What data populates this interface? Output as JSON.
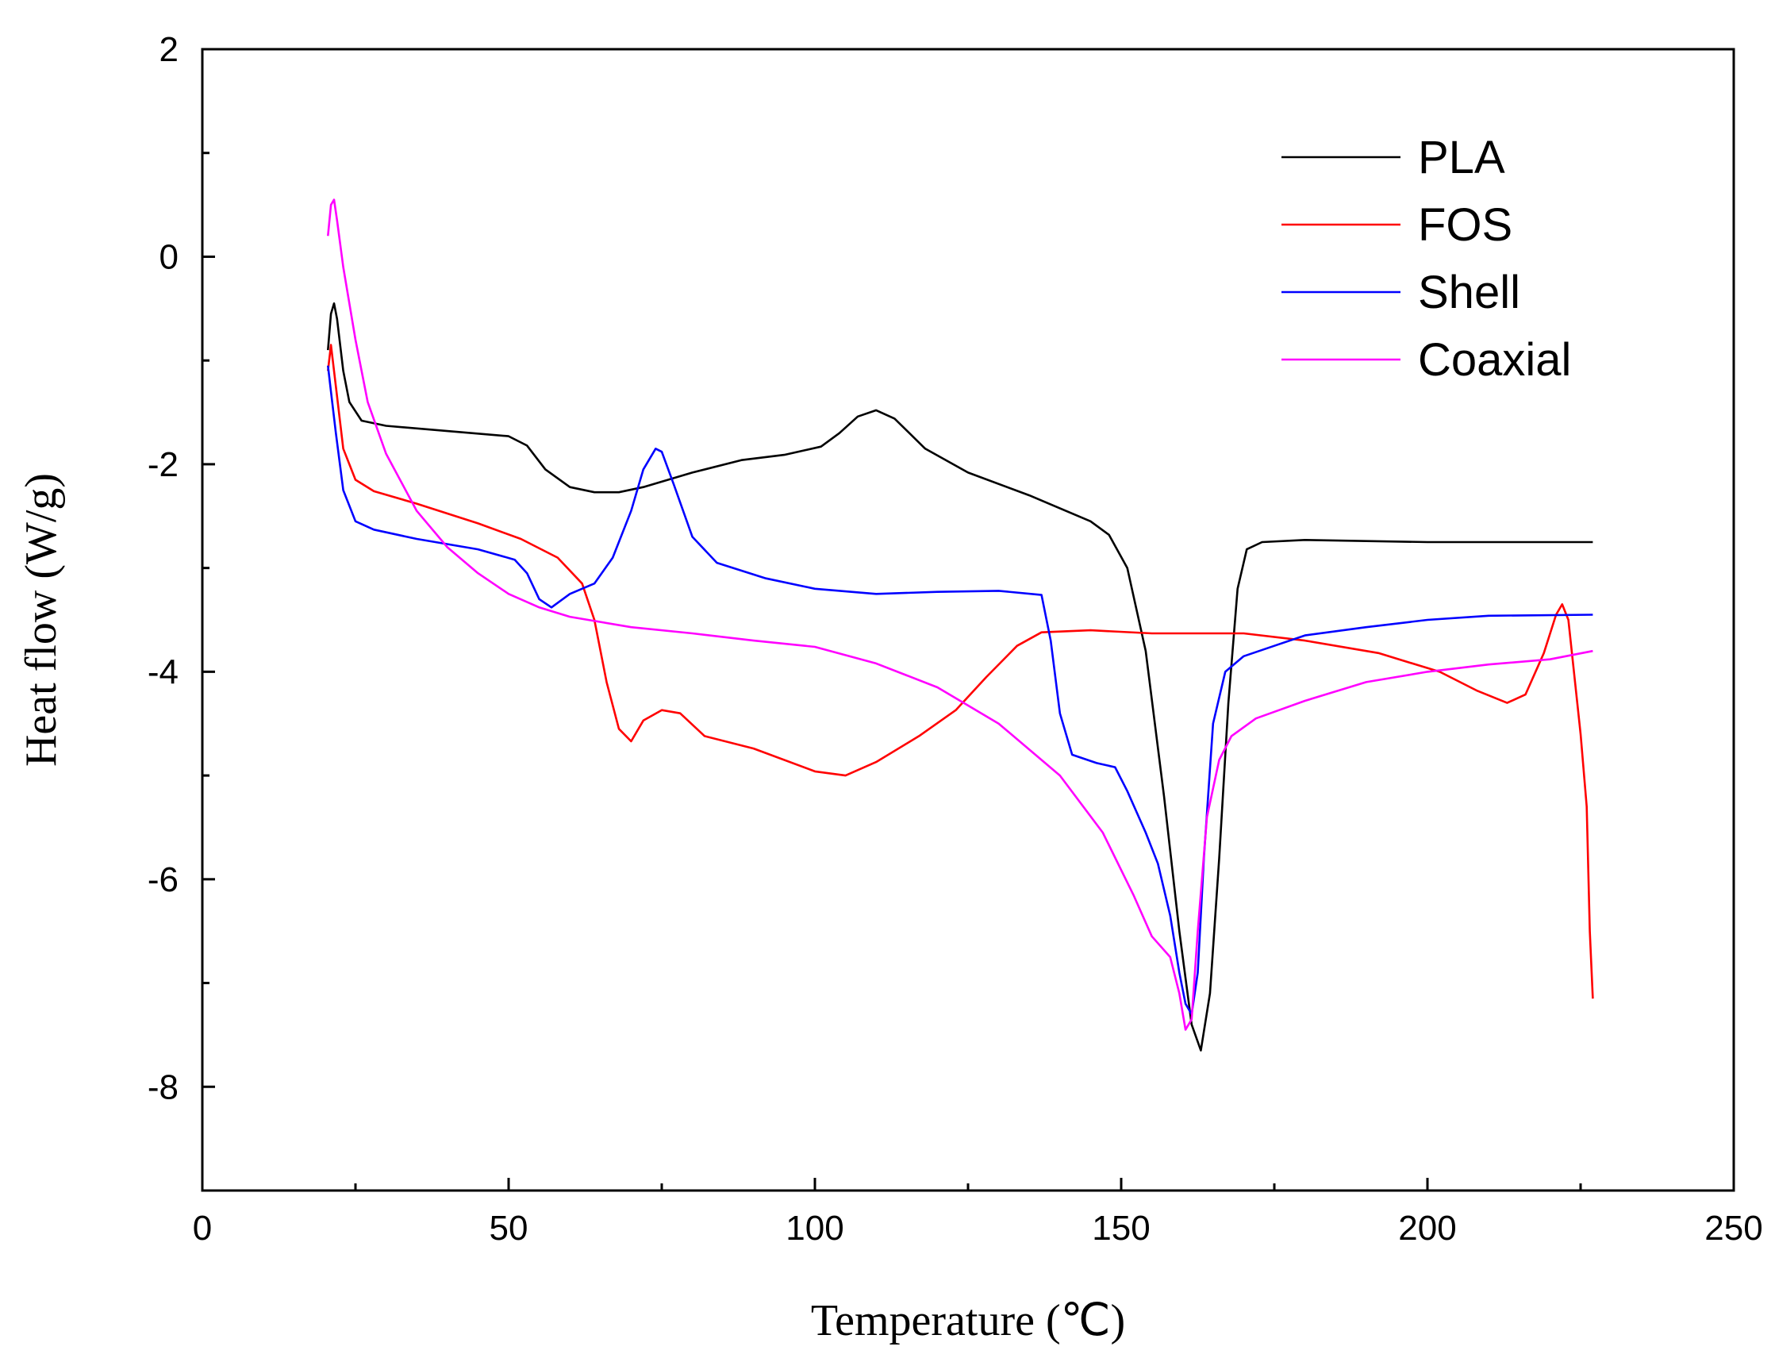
{
  "chart_data": {
    "type": "line",
    "xlabel": "Temperature (℃)",
    "ylabel": "Heat flow (W/g)",
    "xlim": [
      0,
      250
    ],
    "ylim": [
      -9,
      2
    ],
    "xticks": [
      0,
      50,
      100,
      150,
      200,
      250
    ],
    "yticks": [
      2,
      0,
      -2,
      -4,
      -6,
      -8
    ],
    "grid": false,
    "legend_position": "top-right",
    "series": [
      {
        "name": "PLA",
        "color": "#000000",
        "points": [
          [
            20.5,
            -0.9
          ],
          [
            21,
            -0.55
          ],
          [
            21.5,
            -0.45
          ],
          [
            22,
            -0.6
          ],
          [
            23,
            -1.1
          ],
          [
            24,
            -1.4
          ],
          [
            26,
            -1.58
          ],
          [
            30,
            -1.63
          ],
          [
            40,
            -1.68
          ],
          [
            50,
            -1.73
          ],
          [
            53,
            -1.82
          ],
          [
            56,
            -2.05
          ],
          [
            60,
            -2.22
          ],
          [
            64,
            -2.27
          ],
          [
            68,
            -2.27
          ],
          [
            72,
            -2.22
          ],
          [
            80,
            -2.08
          ],
          [
            88,
            -1.96
          ],
          [
            95,
            -1.91
          ],
          [
            101,
            -1.83
          ],
          [
            104,
            -1.7
          ],
          [
            107,
            -1.54
          ],
          [
            110,
            -1.48
          ],
          [
            113,
            -1.56
          ],
          [
            118,
            -1.85
          ],
          [
            125,
            -2.08
          ],
          [
            135,
            -2.3
          ],
          [
            145,
            -2.55
          ],
          [
            148,
            -2.68
          ],
          [
            151,
            -3.0
          ],
          [
            154,
            -3.8
          ],
          [
            157,
            -5.2
          ],
          [
            159.5,
            -6.5
          ],
          [
            161.5,
            -7.4
          ],
          [
            163,
            -7.65
          ],
          [
            164.5,
            -7.1
          ],
          [
            166,
            -5.8
          ],
          [
            167.5,
            -4.3
          ],
          [
            169,
            -3.2
          ],
          [
            170.5,
            -2.82
          ],
          [
            173,
            -2.75
          ],
          [
            180,
            -2.73
          ],
          [
            200,
            -2.75
          ],
          [
            227,
            -2.75
          ]
        ]
      },
      {
        "name": "FOS",
        "color": "#ff0000",
        "points": [
          [
            20.5,
            -1.1
          ],
          [
            21,
            -0.85
          ],
          [
            21.8,
            -1.25
          ],
          [
            23,
            -1.85
          ],
          [
            25,
            -2.15
          ],
          [
            28,
            -2.26
          ],
          [
            35,
            -2.38
          ],
          [
            45,
            -2.57
          ],
          [
            52,
            -2.72
          ],
          [
            58,
            -2.9
          ],
          [
            62,
            -3.15
          ],
          [
            64,
            -3.5
          ],
          [
            66,
            -4.1
          ],
          [
            68,
            -4.55
          ],
          [
            70,
            -4.67
          ],
          [
            72,
            -4.47
          ],
          [
            75,
            -4.37
          ],
          [
            78,
            -4.4
          ],
          [
            82,
            -4.62
          ],
          [
            90,
            -4.74
          ],
          [
            100,
            -4.96
          ],
          [
            105,
            -5.0
          ],
          [
            110,
            -4.87
          ],
          [
            117,
            -4.62
          ],
          [
            123,
            -4.37
          ],
          [
            128,
            -4.05
          ],
          [
            133,
            -3.75
          ],
          [
            137,
            -3.62
          ],
          [
            145,
            -3.6
          ],
          [
            155,
            -3.63
          ],
          [
            170,
            -3.63
          ],
          [
            180,
            -3.7
          ],
          [
            192,
            -3.82
          ],
          [
            202,
            -4.0
          ],
          [
            208,
            -4.18
          ],
          [
            213,
            -4.3
          ],
          [
            216,
            -4.22
          ],
          [
            219,
            -3.82
          ],
          [
            221,
            -3.45
          ],
          [
            222,
            -3.35
          ],
          [
            223,
            -3.5
          ],
          [
            225,
            -4.6
          ],
          [
            226,
            -5.3
          ],
          [
            226.5,
            -6.5
          ],
          [
            227,
            -7.15
          ]
        ]
      },
      {
        "name": "Shell",
        "color": "#0000ff",
        "points": [
          [
            20.5,
            -1.05
          ],
          [
            21,
            -1.3
          ],
          [
            21.8,
            -1.7
          ],
          [
            23,
            -2.25
          ],
          [
            25,
            -2.55
          ],
          [
            28,
            -2.63
          ],
          [
            35,
            -2.72
          ],
          [
            45,
            -2.82
          ],
          [
            51,
            -2.92
          ],
          [
            53,
            -3.05
          ],
          [
            55,
            -3.3
          ],
          [
            57,
            -3.38
          ],
          [
            60,
            -3.25
          ],
          [
            64,
            -3.15
          ],
          [
            67,
            -2.9
          ],
          [
            70,
            -2.45
          ],
          [
            72,
            -2.05
          ],
          [
            74,
            -1.85
          ],
          [
            75,
            -1.88
          ],
          [
            77,
            -2.2
          ],
          [
            80,
            -2.7
          ],
          [
            84,
            -2.95
          ],
          [
            92,
            -3.1
          ],
          [
            100,
            -3.2
          ],
          [
            110,
            -3.25
          ],
          [
            120,
            -3.23
          ],
          [
            130,
            -3.22
          ],
          [
            137,
            -3.26
          ],
          [
            138.5,
            -3.7
          ],
          [
            140,
            -4.4
          ],
          [
            142,
            -4.8
          ],
          [
            146,
            -4.88
          ],
          [
            149,
            -4.92
          ],
          [
            151,
            -5.15
          ],
          [
            154,
            -5.55
          ],
          [
            156,
            -5.85
          ],
          [
            158,
            -6.35
          ],
          [
            159.5,
            -6.9
          ],
          [
            160.5,
            -7.2
          ],
          [
            161.5,
            -7.3
          ],
          [
            162.5,
            -6.9
          ],
          [
            163.5,
            -5.8
          ],
          [
            165,
            -4.5
          ],
          [
            167,
            -4.0
          ],
          [
            170,
            -3.85
          ],
          [
            175,
            -3.75
          ],
          [
            180,
            -3.65
          ],
          [
            190,
            -3.57
          ],
          [
            200,
            -3.5
          ],
          [
            210,
            -3.46
          ],
          [
            227,
            -3.45
          ]
        ]
      },
      {
        "name": "Coaxial",
        "color": "#ff00ff",
        "points": [
          [
            20.5,
            0.2
          ],
          [
            21,
            0.5
          ],
          [
            21.5,
            0.55
          ],
          [
            22,
            0.35
          ],
          [
            23,
            -0.1
          ],
          [
            25,
            -0.8
          ],
          [
            27,
            -1.4
          ],
          [
            30,
            -1.9
          ],
          [
            35,
            -2.45
          ],
          [
            40,
            -2.8
          ],
          [
            45,
            -3.05
          ],
          [
            50,
            -3.25
          ],
          [
            55,
            -3.38
          ],
          [
            60,
            -3.47
          ],
          [
            70,
            -3.57
          ],
          [
            80,
            -3.63
          ],
          [
            90,
            -3.7
          ],
          [
            100,
            -3.76
          ],
          [
            110,
            -3.92
          ],
          [
            120,
            -4.15
          ],
          [
            130,
            -4.5
          ],
          [
            140,
            -5.0
          ],
          [
            147,
            -5.55
          ],
          [
            152,
            -6.15
          ],
          [
            155,
            -6.55
          ],
          [
            158,
            -6.75
          ],
          [
            159.5,
            -7.1
          ],
          [
            160.5,
            -7.45
          ],
          [
            161.5,
            -7.35
          ],
          [
            162.5,
            -6.5
          ],
          [
            164,
            -5.4
          ],
          [
            166,
            -4.85
          ],
          [
            168,
            -4.62
          ],
          [
            172,
            -4.45
          ],
          [
            180,
            -4.28
          ],
          [
            190,
            -4.1
          ],
          [
            200,
            -4.0
          ],
          [
            210,
            -3.93
          ],
          [
            220,
            -3.88
          ],
          [
            227,
            -3.8
          ]
        ]
      }
    ]
  }
}
